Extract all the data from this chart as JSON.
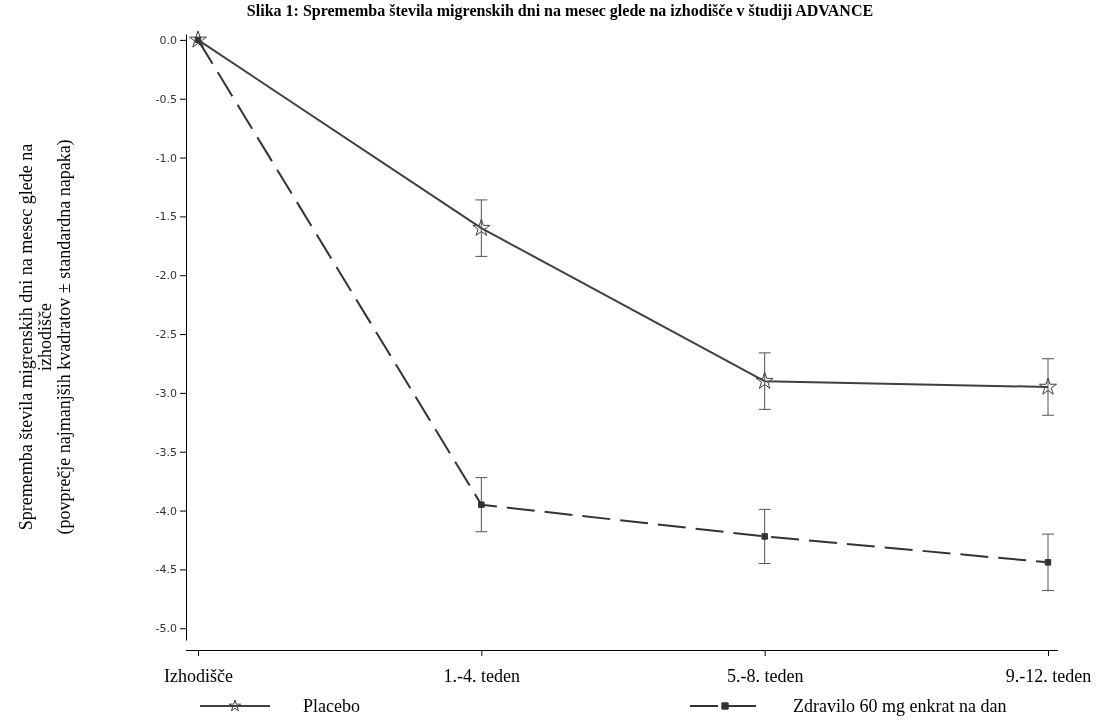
{
  "chart_data": {
    "type": "line",
    "title": "Slika 1: Sprememba števila migrenskih dni na mesec glede na izhodišče v študiji ADVANCE",
    "ylabel": "Sprememba števila  migrenskih dni na mesec glede na\nizhodišče\n(povprečje najmanjših kvadratov ± standardna napaka)",
    "categories": [
      "Izhodišče",
      "1.-4. teden",
      "5.-8. teden",
      "9.-12. teden"
    ],
    "series": [
      {
        "name": "Placebo",
        "color": "#404040",
        "values": [
          0,
          -1.6,
          -2.9,
          -2.95
        ],
        "errors": [
          null,
          0.24,
          0.24,
          0.24
        ],
        "marker": "star",
        "line_style": "solid"
      },
      {
        "name": "Zdravilo 60 mg enkrat na dan",
        "color": "#333333",
        "values": [
          0,
          -3.95,
          -4.22,
          -4.44
        ],
        "errors": [
          null,
          0.23,
          0.23,
          0.24
        ],
        "marker": "square",
        "line_style": "dashed"
      }
    ],
    "ylim": [
      -5.1,
      0.05
    ],
    "yticks": [
      {
        "value": 0,
        "label": "0.0"
      },
      {
        "value": -0.5,
        "label": "-0.5"
      },
      {
        "value": -1,
        "label": "-1.0"
      },
      {
        "value": -1.5,
        "label": "-1.5"
      },
      {
        "value": -2,
        "label": "-2.0"
      },
      {
        "value": -2.5,
        "label": "-2.5"
      },
      {
        "value": -3,
        "label": "-3.0"
      },
      {
        "value": -3.5,
        "label": "-3.5"
      },
      {
        "value": -4,
        "label": "-4.0"
      },
      {
        "value": -4.5,
        "label": "-4.5"
      },
      {
        "value": -5,
        "label": "-5.0"
      }
    ],
    "grid": false,
    "legend": "bottom"
  }
}
